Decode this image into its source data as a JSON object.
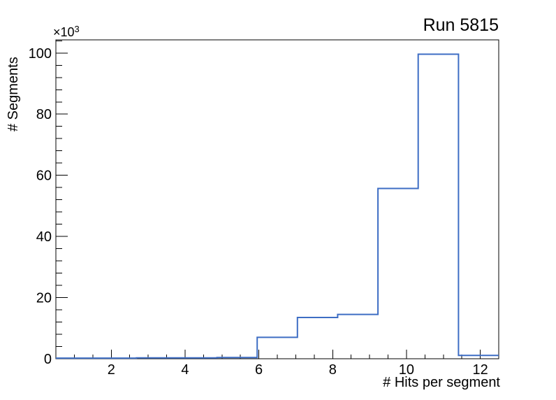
{
  "window": {
    "background_color": "#ffffff"
  },
  "chart_data": {
    "type": "bar",
    "subtype": "step-histogram-outline",
    "title": "Run 5815",
    "xlabel": "# Hits per segment",
    "ylabel": "# Segments",
    "y_axis_multiplier": {
      "base": "×10",
      "exp": "3"
    },
    "xlim": [
      0.5,
      12.5
    ],
    "ylim": [
      0,
      104300
    ],
    "n_bins": 11,
    "bin_edges": [
      0.5,
      1.591,
      2.682,
      3.773,
      4.864,
      5.955,
      7.045,
      8.136,
      9.227,
      10.318,
      11.409,
      12.5
    ],
    "values": [
      200,
      200,
      300,
      300,
      400,
      7000,
      13500,
      14500,
      55700,
      99600,
      1100
    ],
    "x_major_ticks": [
      2,
      4,
      6,
      8,
      10,
      12
    ],
    "x_major_tick_labels": [
      "2",
      "4",
      "6",
      "8",
      "10",
      "12"
    ],
    "x_minor_tick_step": 0.5,
    "y_major_ticks": [
      0,
      20000,
      40000,
      60000,
      80000,
      100000
    ],
    "y_major_tick_labels": [
      "0",
      "20",
      "40",
      "60",
      "80",
      "100"
    ],
    "y_minor_tick_step": 4000,
    "grid": false,
    "legend": null,
    "line_color": "#3d6dc4",
    "axis_color": "#000000",
    "text_color": "#000000"
  }
}
